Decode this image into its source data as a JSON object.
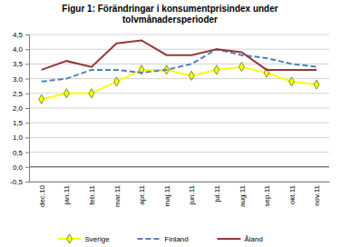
{
  "chart_data": {
    "type": "line",
    "title": "Figur 1: Förändringar i konsumentprisindex  under\ntolvmånadersperioder",
    "categories": [
      "dec.10",
      "jan.11",
      "feb.11",
      "mar.11",
      "apr.11",
      "maj.11",
      "jun.11",
      "jul.11",
      "aug.11",
      "sep.11",
      "okt.11",
      "nov.11"
    ],
    "series": [
      {
        "name": "Sverige",
        "color": "#ffff00",
        "marker": "diamond",
        "line_style": "solid",
        "values": [
          2.3,
          2.5,
          2.5,
          2.9,
          3.3,
          3.3,
          3.1,
          3.3,
          3.4,
          3.2,
          2.9,
          2.8
        ]
      },
      {
        "name": "Finland",
        "color": "#4f81bd",
        "marker": "none",
        "line_style": "dashed",
        "values": [
          2.9,
          3.0,
          3.3,
          3.3,
          3.2,
          3.3,
          3.5,
          4.0,
          3.8,
          3.7,
          3.5,
          3.4
        ]
      },
      {
        "name": "Åland",
        "color": "#953735",
        "marker": "none",
        "line_style": "solid",
        "values": [
          3.3,
          3.6,
          3.4,
          4.2,
          4.3,
          3.8,
          3.8,
          4.0,
          3.9,
          3.3,
          3.3,
          3.3
        ]
      }
    ],
    "ylim": [
      -0.5,
      4.5
    ],
    "yticks": [
      {
        "value": -0.5,
        "label": "-0,5"
      },
      {
        "value": 0,
        "label": "0,0"
      },
      {
        "value": 0.5,
        "label": "0,5"
      },
      {
        "value": 1,
        "label": "1,0"
      },
      {
        "value": 1.5,
        "label": "1,5"
      },
      {
        "value": 2,
        "label": "2,0"
      },
      {
        "value": 2.5,
        "label": "2,5"
      },
      {
        "value": 3,
        "label": "3,0"
      },
      {
        "value": 3.5,
        "label": "3,5"
      },
      {
        "value": 4,
        "label": "4,0"
      },
      {
        "value": 4.5,
        "label": "4,5"
      }
    ],
    "grid": true,
    "legend": "bottom"
  }
}
